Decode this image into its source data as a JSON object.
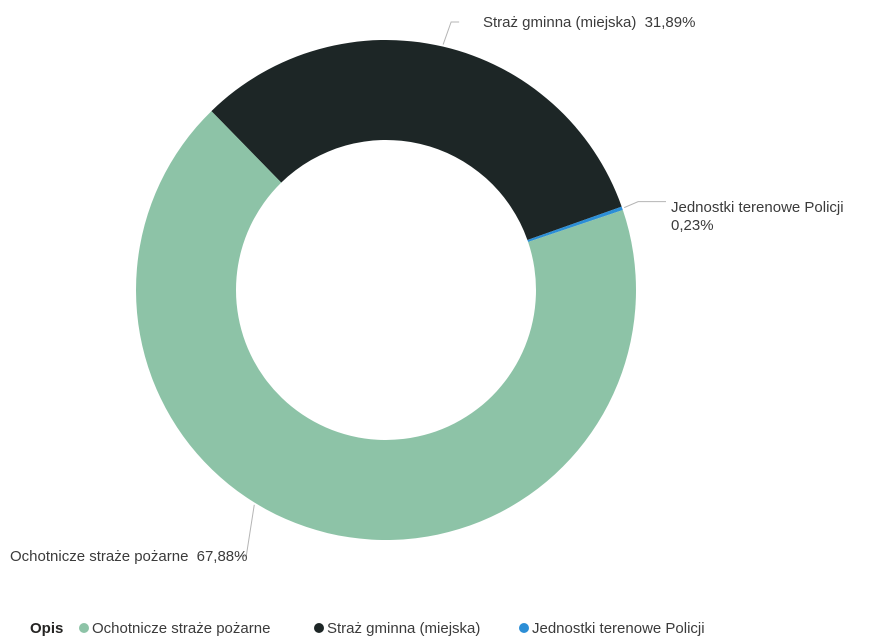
{
  "chart_data": {
    "type": "pie",
    "variant": "donut",
    "legend_title": "Opis",
    "legend_position": "bottom-left",
    "slices": [
      {
        "name": "Ochotnicze straże pożarne",
        "value": 67.88,
        "value_label": "67,88%",
        "color": "#8DC3A7"
      },
      {
        "name": "Straż gminna (miejska)",
        "value": 31.89,
        "value_label": "31,89%",
        "color": "#1D2626"
      },
      {
        "name": "Jednostki terenowe Policji",
        "value": 0.23,
        "value_label": "0,23%",
        "color": "#2C8ED6"
      }
    ]
  }
}
